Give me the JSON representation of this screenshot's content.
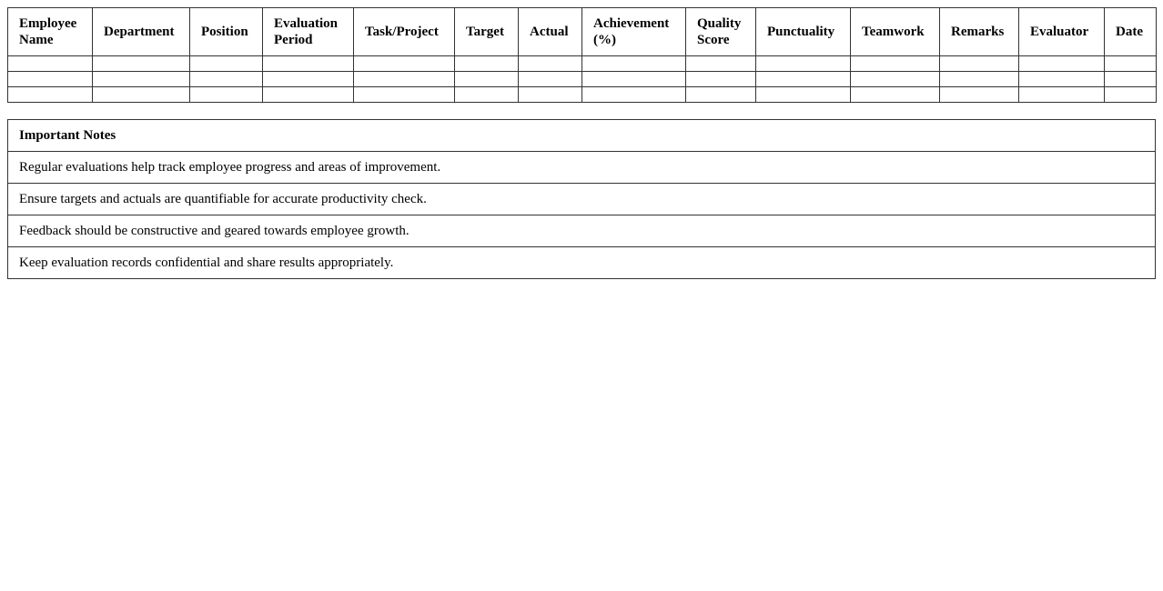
{
  "table": {
    "headers": [
      "Employee Name",
      "Department",
      "Position",
      "Evaluation Period",
      "Task/Project",
      "Target",
      "Actual",
      "Achievement (%)",
      "Quality Score",
      "Punctuality",
      "Teamwork",
      "Remarks",
      "Evaluator",
      "Date"
    ],
    "rows": [
      [
        "",
        "",
        "",
        "",
        "",
        "",
        "",
        "",
        "",
        "",
        "",
        "",
        "",
        ""
      ],
      [
        "",
        "",
        "",
        "",
        "",
        "",
        "",
        "",
        "",
        "",
        "",
        "",
        "",
        ""
      ],
      [
        "",
        "",
        "",
        "",
        "",
        "",
        "",
        "",
        "",
        "",
        "",
        "",
        "",
        ""
      ]
    ]
  },
  "notes": {
    "title": "Important Notes",
    "items": [
      "Regular evaluations help track employee progress and areas of improvement.",
      "Ensure targets and actuals are quantifiable for accurate productivity check.",
      "Feedback should be constructive and geared towards employee growth.",
      "Keep evaluation records confidential and share results appropriately."
    ]
  }
}
